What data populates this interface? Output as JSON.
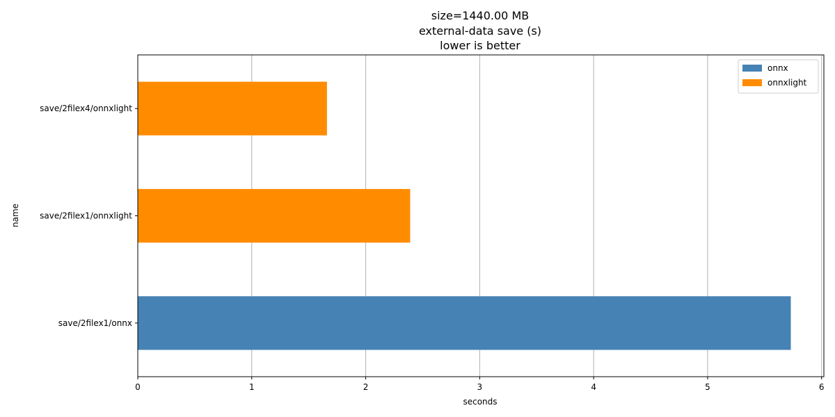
{
  "chart_data": {
    "type": "bar",
    "orientation": "horizontal",
    "title_lines": [
      "size=1440.00 MB",
      "external-data save (s)",
      "lower is better"
    ],
    "xlabel": "seconds",
    "ylabel": "name",
    "xlim": [
      0,
      6.02
    ],
    "xticks": [
      0,
      1,
      2,
      3,
      4,
      5,
      6
    ],
    "grid": "x",
    "legend_position": "top-right",
    "legend": [
      {
        "label": "onnx",
        "color": "#4682b4"
      },
      {
        "label": "onnxlight",
        "color": "#ff8c00"
      }
    ],
    "bars": [
      {
        "category": "save/2filex1/onnx",
        "value": 5.73,
        "series": "onnx",
        "color": "#4682b4"
      },
      {
        "category": "save/2filex1/onnxlight",
        "value": 2.39,
        "series": "onnxlight",
        "color": "#ff8c00"
      },
      {
        "category": "save/2filex4/onnxlight",
        "value": 1.66,
        "series": "onnxlight",
        "color": "#ff8c00"
      }
    ]
  }
}
